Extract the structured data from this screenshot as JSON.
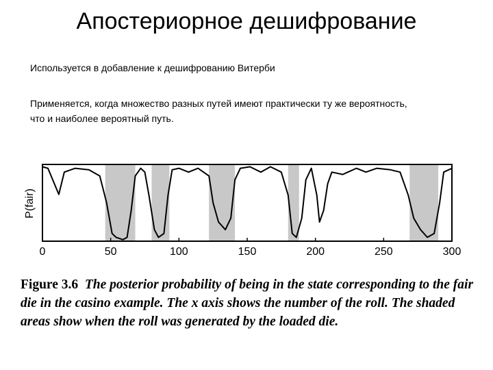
{
  "title": "Апостериорное дешифрование",
  "bullets": [
    "Используется в добавление к дешифрованию Витерби",
    "Применяется, когда множество разных путей имеют практически ту же вероятность, что и наиболее вероятный путь."
  ],
  "chart_data": {
    "type": "line",
    "y_label": "P(fair)",
    "x": [
      0,
      4,
      12,
      16,
      24,
      34,
      42,
      47,
      51,
      54,
      59,
      62,
      65,
      68,
      72,
      75,
      78,
      82,
      85,
      89,
      92,
      95,
      100,
      107,
      114,
      122,
      125,
      129,
      134,
      138,
      141,
      145,
      152,
      160,
      167,
      175,
      180,
      183,
      186,
      190,
      193,
      197,
      201,
      203,
      206,
      209,
      212,
      220,
      230,
      237,
      245,
      255,
      262,
      268,
      272,
      277,
      282,
      287,
      291,
      294,
      300
    ],
    "values": [
      0.97,
      0.95,
      0.61,
      0.9,
      0.95,
      0.93,
      0.85,
      0.5,
      0.1,
      0.05,
      0.02,
      0.05,
      0.4,
      0.85,
      0.95,
      0.9,
      0.6,
      0.15,
      0.05,
      0.1,
      0.6,
      0.93,
      0.95,
      0.9,
      0.95,
      0.85,
      0.5,
      0.25,
      0.15,
      0.3,
      0.8,
      0.95,
      0.97,
      0.9,
      0.97,
      0.9,
      0.6,
      0.1,
      0.05,
      0.3,
      0.8,
      0.95,
      0.6,
      0.25,
      0.4,
      0.75,
      0.9,
      0.87,
      0.95,
      0.9,
      0.95,
      0.93,
      0.9,
      0.6,
      0.3,
      0.15,
      0.05,
      0.1,
      0.5,
      0.9,
      0.95
    ],
    "color": "#000000",
    "shaded": [
      [
        46,
        68
      ],
      [
        80,
        93
      ],
      [
        122,
        141
      ],
      [
        180,
        188
      ],
      [
        269,
        290
      ]
    ],
    "shade_color": "#c8c8c8",
    "xlim": [
      0,
      300
    ],
    "ylim": [
      0,
      1
    ],
    "xticks": [
      0,
      50,
      100,
      150,
      200,
      250,
      300
    ]
  },
  "caption": {
    "label": "Figure 3.6",
    "text": "The posterior probability of being in the state corresponding to the fair die in the casino example. The x axis shows the number of the roll. The shaded areas show when the roll was generated by the loaded die."
  }
}
